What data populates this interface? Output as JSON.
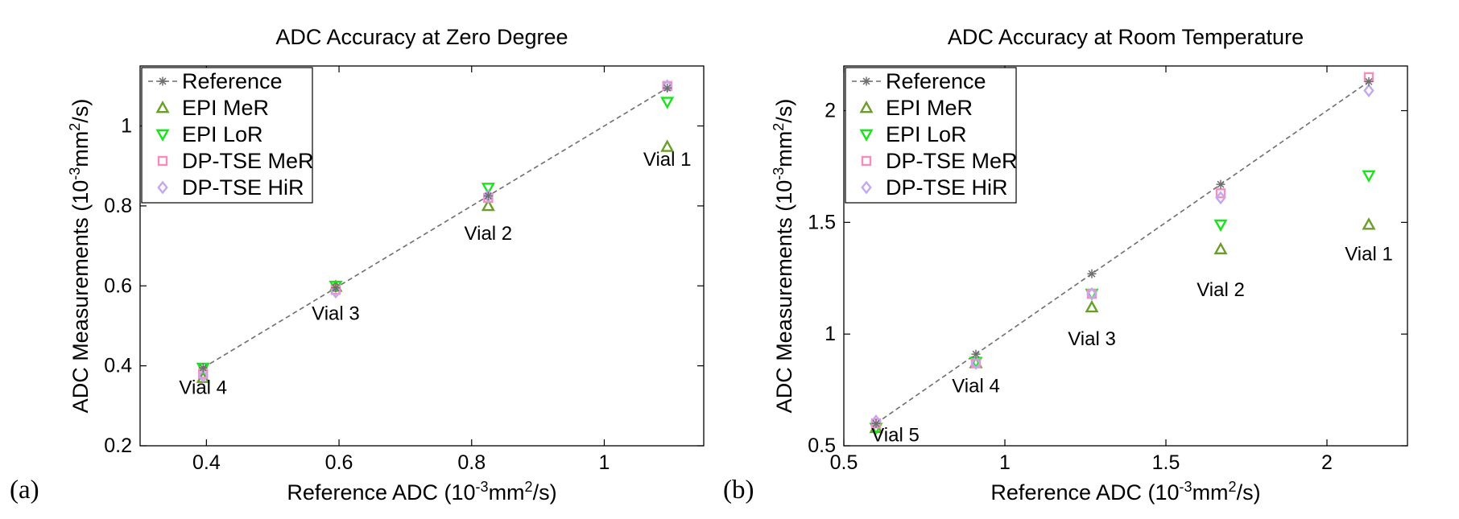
{
  "colors": {
    "reference": "#6e6e6e",
    "epi_mer": "#6a9f27",
    "epi_lor": "#17e51a",
    "dp_tse_mer": "#f28fc0",
    "dp_tse_hir": "#c6a6ef"
  },
  "legend_order": [
    "Reference",
    "EPI MeR",
    "EPI LoR",
    "DP-TSE MeR",
    "DP-TSE HiR"
  ],
  "chart_data": [
    {
      "type": "scatter",
      "panel_label": "(a)",
      "title": "ADC Accuracy at Zero Degree",
      "xlabel": "Reference ADC (10-3mm2/s)",
      "ylabel": "ADC Measurements (10-3mm2/s)",
      "xlim": [
        0.3,
        1.15
      ],
      "ylim": [
        0.2,
        1.15
      ],
      "xticks": [
        0.4,
        0.6,
        0.8,
        1
      ],
      "xtick_labels": [
        "0.4",
        "0.6",
        "0.8",
        "1"
      ],
      "yticks": [
        0.2,
        0.4,
        0.6,
        0.8,
        1
      ],
      "ytick_labels": [
        "0.2",
        "0.4",
        "0.6",
        "0.8",
        "1"
      ],
      "grid": false,
      "legend_position": "top-left",
      "x": [
        0.395,
        0.595,
        0.825,
        1.095
      ],
      "series": [
        {
          "name": "Reference",
          "marker": "star-dashed-line",
          "values": [
            0.395,
            0.595,
            0.825,
            1.095
          ]
        },
        {
          "name": "EPI MeR",
          "marker": "triangle-up",
          "values": [
            0.37,
            0.598,
            0.8,
            0.948
          ]
        },
        {
          "name": "EPI LoR",
          "marker": "triangle-down",
          "values": [
            0.395,
            0.6,
            0.845,
            1.06
          ]
        },
        {
          "name": "DP-TSE MeR",
          "marker": "square",
          "values": [
            0.38,
            0.59,
            0.82,
            1.1
          ]
        },
        {
          "name": "DP-TSE HiR",
          "marker": "diamond",
          "values": [
            0.375,
            0.585,
            0.825,
            1.1
          ]
        }
      ],
      "annotations": [
        {
          "text": "Vial 4",
          "x": 0.395,
          "y": 0.33
        },
        {
          "text": "Vial 3",
          "x": 0.595,
          "y": 0.515
        },
        {
          "text": "Vial 2",
          "x": 0.825,
          "y": 0.715
        },
        {
          "text": "Vial 1",
          "x": 1.095,
          "y": 0.9
        }
      ]
    },
    {
      "type": "scatter",
      "panel_label": "(b)",
      "title": "ADC Accuracy at Room Temperature",
      "xlabel": "Reference ADC (10-3mm2/s)",
      "ylabel": "ADC Measurements (10-3mm2/s)",
      "xlim": [
        0.5,
        2.25
      ],
      "ylim": [
        0.5,
        2.2
      ],
      "xticks": [
        0.5,
        1,
        1.5,
        2
      ],
      "xtick_labels": [
        "0.5",
        "1",
        "1.5",
        "2"
      ],
      "yticks": [
        0.5,
        1,
        1.5,
        2
      ],
      "ytick_labels": [
        "0.5",
        "1",
        "1.5",
        "2"
      ],
      "grid": false,
      "legend_position": "top-left",
      "x": [
        0.6,
        0.91,
        1.27,
        1.67,
        2.13
      ],
      "series": [
        {
          "name": "Reference",
          "marker": "star-dashed-line",
          "values": [
            0.6,
            0.91,
            1.27,
            1.67,
            2.13
          ]
        },
        {
          "name": "EPI MeR",
          "marker": "triangle-up",
          "values": [
            0.58,
            0.87,
            1.12,
            1.38,
            1.49
          ]
        },
        {
          "name": "EPI LoR",
          "marker": "triangle-down",
          "values": [
            0.58,
            0.875,
            1.18,
            1.49,
            1.71
          ]
        },
        {
          "name": "DP-TSE MeR",
          "marker": "square",
          "values": [
            0.6,
            0.87,
            1.18,
            1.63,
            2.15
          ]
        },
        {
          "name": "DP-TSE HiR",
          "marker": "diamond",
          "values": [
            0.61,
            0.87,
            1.18,
            1.61,
            2.09
          ]
        }
      ],
      "annotations": [
        {
          "text": "Vial 5",
          "x": 0.66,
          "y": 0.52
        },
        {
          "text": "Vial 4",
          "x": 0.91,
          "y": 0.74
        },
        {
          "text": "Vial 3",
          "x": 1.27,
          "y": 0.95
        },
        {
          "text": "Vial 2",
          "x": 1.67,
          "y": 1.17
        },
        {
          "text": "Vial 1",
          "x": 2.13,
          "y": 1.33
        }
      ]
    }
  ]
}
